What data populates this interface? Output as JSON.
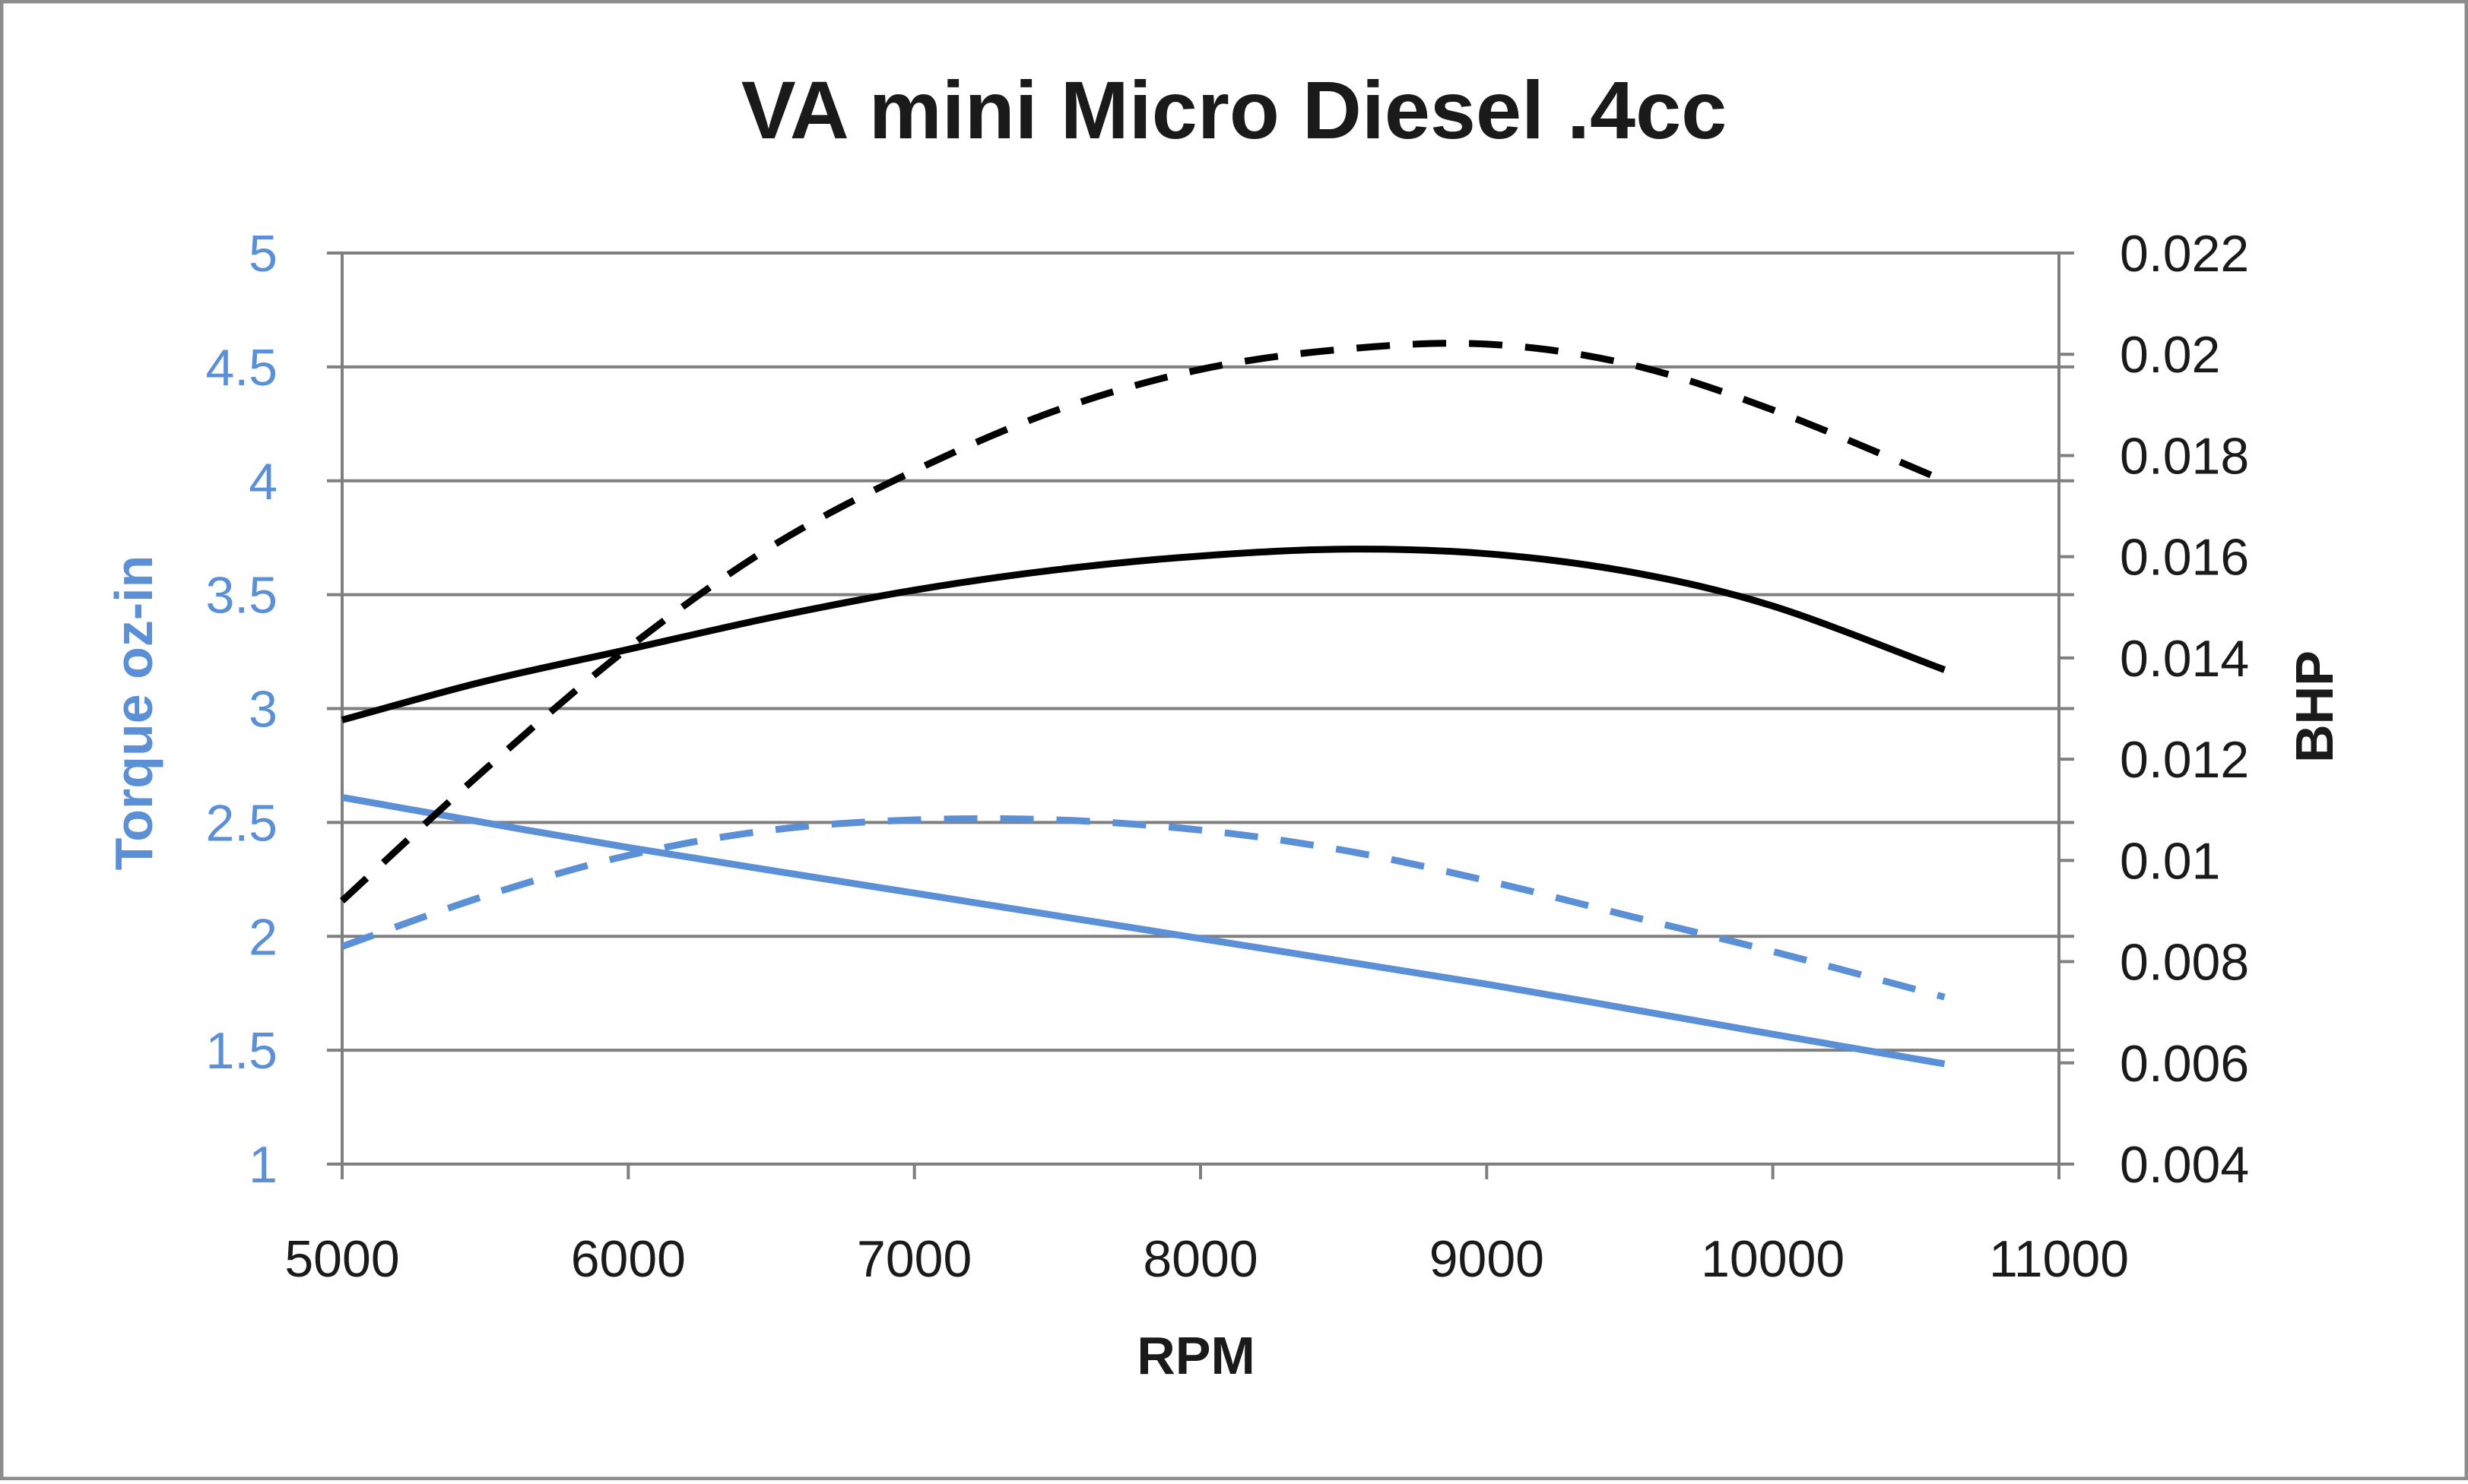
{
  "chart_data": {
    "type": "line",
    "title": "VA mini Micro Diesel .4cc",
    "xlabel": "RPM",
    "ylabel_left": "Torque oz-in",
    "ylabel_right": "BHP",
    "xlim": [
      5000,
      11000
    ],
    "ylim_left": [
      1,
      5
    ],
    "ylim_right": [
      0.004,
      0.022
    ],
    "x_ticks": [
      "5000",
      "6000",
      "7000",
      "8000",
      "9000",
      "10000",
      "11000"
    ],
    "y_left_ticks": [
      "1",
      "1.5",
      "2",
      "2.5",
      "3",
      "3.5",
      "4",
      "4.5",
      "5"
    ],
    "y_right_ticks": [
      "0.004",
      "0.006",
      "0.008",
      "0.01",
      "0.012",
      "0.014",
      "0.016",
      "0.018",
      "0.02",
      "0.022"
    ],
    "grid": true,
    "legend": "none",
    "colors": {
      "blue": "#5b8fd6",
      "black": "#000000",
      "grid": "#7f7f7f",
      "border": "#8c8c8c"
    },
    "series": [
      {
        "axis": "left",
        "color": "#000000",
        "dash": "solid",
        "x": [
          5000,
          5500,
          6000,
          6500,
          7000,
          7500,
          8000,
          8500,
          9000,
          9500,
          10000,
          10600
        ],
        "y": [
          2.95,
          3.12,
          3.26,
          3.4,
          3.52,
          3.61,
          3.67,
          3.7,
          3.68,
          3.6,
          3.45,
          3.17
        ]
      },
      {
        "axis": "left",
        "color": "#5b8fd6",
        "dash": "solid",
        "x": [
          5000,
          6000,
          7000,
          8000,
          9000,
          10000,
          10600
        ],
        "y": [
          2.61,
          2.39,
          2.19,
          1.99,
          1.79,
          1.57,
          1.44
        ]
      },
      {
        "axis": "right",
        "color": "#000000",
        "dash": "dashed",
        "x": [
          5000,
          5500,
          6000,
          6500,
          7000,
          7500,
          8000,
          8500,
          9000,
          9500,
          10000,
          10600
        ],
        "y": [
          0.0092,
          0.0118,
          0.0142,
          0.0162,
          0.0177,
          0.0189,
          0.0197,
          0.0201,
          0.0202,
          0.0198,
          0.0189,
          0.0175
        ]
      },
      {
        "axis": "right",
        "color": "#5b8fd6",
        "dash": "dashed",
        "x": [
          5000,
          5500,
          6000,
          6500,
          7000,
          7500,
          8000,
          8500,
          9000,
          9500,
          10000,
          10600
        ],
        "y": [
          0.0083,
          0.0093,
          0.0101,
          0.0106,
          0.0108,
          0.0108,
          0.0106,
          0.0102,
          0.0096,
          0.0089,
          0.0082,
          0.0073
        ]
      }
    ]
  }
}
